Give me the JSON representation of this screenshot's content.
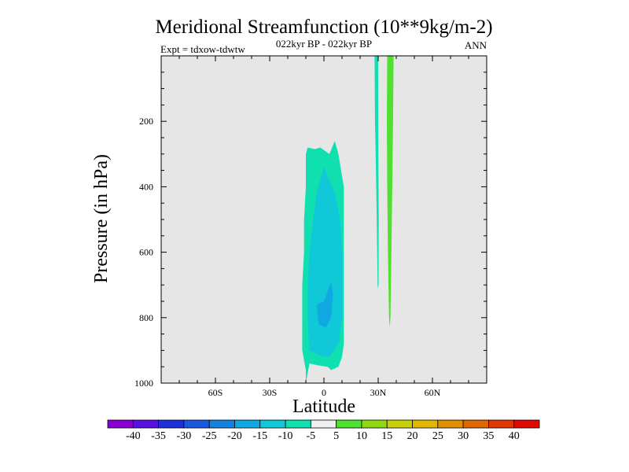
{
  "chart_data": {
    "type": "contour",
    "title": "Meridional Streamfunction (10**9kg/m-2)",
    "subtitle_center": "022kyr BP - 022kyr BP",
    "subtitle_left": "Expt = tdxow-tdwtw",
    "subtitle_right": "ANN",
    "xlabel": "Latitude",
    "ylabel": "Pressure (in hPa)",
    "xlim": [
      -90,
      90
    ],
    "ylim": [
      1000,
      0
    ],
    "x_ticks": [
      "60S",
      "30S",
      "0",
      "30N",
      "60N"
    ],
    "x_tick_values": [
      -60,
      -30,
      0,
      30,
      60
    ],
    "y_ticks": [
      "200",
      "400",
      "600",
      "800",
      "1000"
    ],
    "y_tick_values": [
      200,
      400,
      600,
      800,
      1000
    ],
    "background_color": "#e6e6e6",
    "colorbar": {
      "labels": [
        "-40",
        "-35",
        "-30",
        "-25",
        "-20",
        "-15",
        "-10",
        "-5",
        "5",
        "10",
        "15",
        "20",
        "25",
        "30",
        "35",
        "40"
      ],
      "colors": [
        "#8a00d4",
        "#5a10e0",
        "#2030d8",
        "#1a58e0",
        "#1480e0",
        "#10a8e0",
        "#10c8d8",
        "#10e0b0",
        "#f0f0f0",
        "#50e030",
        "#90d810",
        "#c8d008",
        "#e0b800",
        "#e09000",
        "#e06800",
        "#e03800",
        "#e00800"
      ]
    },
    "regions": [
      {
        "name": "southern-hemisphere-negative-cell",
        "level": -10,
        "color": "#10e0b0",
        "outline": [
          [
            -10,
            1000
          ],
          [
            -10,
            960
          ],
          [
            -12,
            900
          ],
          [
            -12,
            800
          ],
          [
            -12,
            700
          ],
          [
            -11,
            600
          ],
          [
            -11,
            500
          ],
          [
            -10,
            400
          ],
          [
            -10,
            300
          ],
          [
            -9,
            280
          ],
          [
            -5,
            285
          ],
          [
            -2,
            280
          ],
          [
            3,
            300
          ],
          [
            6,
            260
          ],
          [
            8,
            300
          ],
          [
            11,
            400
          ],
          [
            11,
            500
          ],
          [
            11,
            600
          ],
          [
            11,
            700
          ],
          [
            11,
            800
          ],
          [
            11,
            880
          ],
          [
            10,
            920
          ],
          [
            8,
            950
          ],
          [
            4,
            960
          ],
          [
            2,
            950
          ],
          [
            -4,
            945
          ],
          [
            -8,
            940
          ]
        ]
      },
      {
        "name": "southern-hemisphere-core",
        "level": -15,
        "color": "#10c8d8",
        "outline": [
          [
            -8,
            900
          ],
          [
            -9,
            800
          ],
          [
            -9,
            700
          ],
          [
            -8,
            600
          ],
          [
            -6,
            500
          ],
          [
            -4,
            420
          ],
          [
            0,
            340
          ],
          [
            3,
            380
          ],
          [
            6,
            420
          ],
          [
            9,
            500
          ],
          [
            10,
            600
          ],
          [
            10,
            700
          ],
          [
            10,
            800
          ],
          [
            8,
            880
          ],
          [
            3,
            920
          ],
          [
            -3,
            915
          ]
        ]
      },
      {
        "name": "southern-hemisphere-inner-core",
        "level": -20,
        "color": "#10a8e0",
        "outline": [
          [
            -3,
            820
          ],
          [
            -4,
            760
          ],
          [
            0,
            750
          ],
          [
            4,
            690
          ],
          [
            5,
            730
          ],
          [
            4,
            800
          ],
          [
            1,
            830
          ]
        ]
      },
      {
        "name": "northern-narrow-negative-band",
        "level": -10,
        "color": "#10e0b0",
        "outline": [
          [
            28,
            0
          ],
          [
            30,
            0
          ],
          [
            30,
            200
          ],
          [
            30.3,
            500
          ],
          [
            30.2,
            700
          ],
          [
            29.7,
            710
          ],
          [
            29.2,
            500
          ],
          [
            28.6,
            300
          ],
          [
            28.2,
            200
          ]
        ]
      },
      {
        "name": "northern-positive-band",
        "level": 5,
        "color": "#50e030",
        "outline": [
          [
            35,
            0
          ],
          [
            38.5,
            0
          ],
          [
            38.2,
            200
          ],
          [
            37.8,
            400
          ],
          [
            37.3,
            600
          ],
          [
            36.8,
            800
          ],
          [
            36.4,
            830
          ],
          [
            36,
            800
          ],
          [
            35.4,
            600
          ],
          [
            35,
            400
          ],
          [
            34.8,
            200
          ]
        ]
      }
    ]
  }
}
